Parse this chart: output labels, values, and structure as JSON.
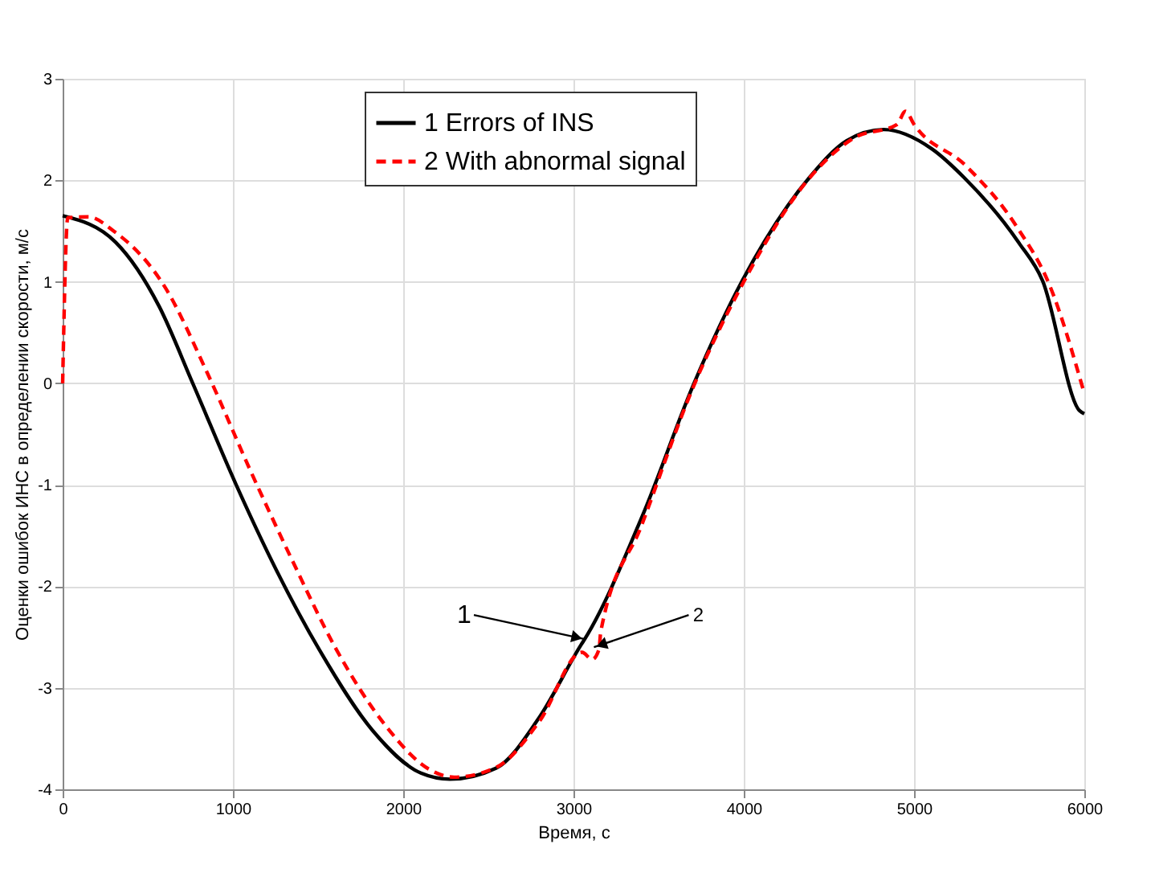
{
  "chart_data": {
    "type": "line",
    "xlabel": "Время, с",
    "ylabel": "Оценки ошибок ИНС в определении скорости, м/с",
    "xlim": [
      0,
      6000
    ],
    "ylim": [
      -4,
      3
    ],
    "xticks": [
      0,
      1000,
      2000,
      3000,
      4000,
      5000,
      6000
    ],
    "yticks": [
      -4,
      -3,
      -2,
      -1,
      0,
      1,
      2,
      3
    ],
    "grid": true,
    "legend": "top",
    "marker": "none",
    "series": [
      {
        "name": "1 Errors of INS",
        "color": "#000000",
        "line_style": "solid",
        "x": [
          0,
          311,
          566,
          764,
          1019,
          1255,
          1509,
          1820,
          2104,
          2274,
          2547,
          2792,
          3047,
          3066,
          3406,
          3708,
          3991,
          4387,
          4604,
          4821,
          5104,
          5292,
          5613,
          5755,
          5972,
          6000
        ],
        "values": [
          1.65,
          1.39,
          0.76,
          0,
          -1.0,
          -1.84,
          -2.63,
          -3.42,
          -3.84,
          -3.9,
          -3.79,
          -3.31,
          -2.57,
          -2.52,
          -1.3,
          0,
          1.01,
          2.03,
          2.39,
          2.5,
          2.31,
          2.03,
          1.39,
          1.01,
          -0.27,
          -0.3
        ]
      },
      {
        "name": "2 With abnormal signal",
        "color": "#ff0000",
        "line_style": "dashed",
        "x": [
          0,
          30,
          150,
          300,
          600,
          850,
          1100,
          1350,
          1600,
          1900,
          2150,
          2300,
          2550,
          2800,
          3050,
          3110,
          3150,
          3160,
          3400,
          3700,
          4000,
          4400,
          4650,
          4900,
          4950,
          5000,
          5300,
          5600,
          5800,
          6000
        ],
        "values": [
          0,
          1.63,
          1.64,
          1.5,
          0.95,
          0.1,
          -0.85,
          -1.75,
          -2.6,
          -3.38,
          -3.8,
          -3.88,
          -3.78,
          -3.33,
          -2.65,
          -2.72,
          -2.62,
          -2.45,
          -1.4,
          -0.05,
          1.0,
          2.05,
          2.42,
          2.55,
          2.68,
          2.55,
          2.15,
          1.55,
          0.95,
          -0.1
        ]
      }
    ],
    "annotations": [
      {
        "text": "1",
        "x": 3066,
        "y": -2.52
      },
      {
        "text": "2",
        "x": 3120,
        "y": -2.6
      }
    ]
  }
}
